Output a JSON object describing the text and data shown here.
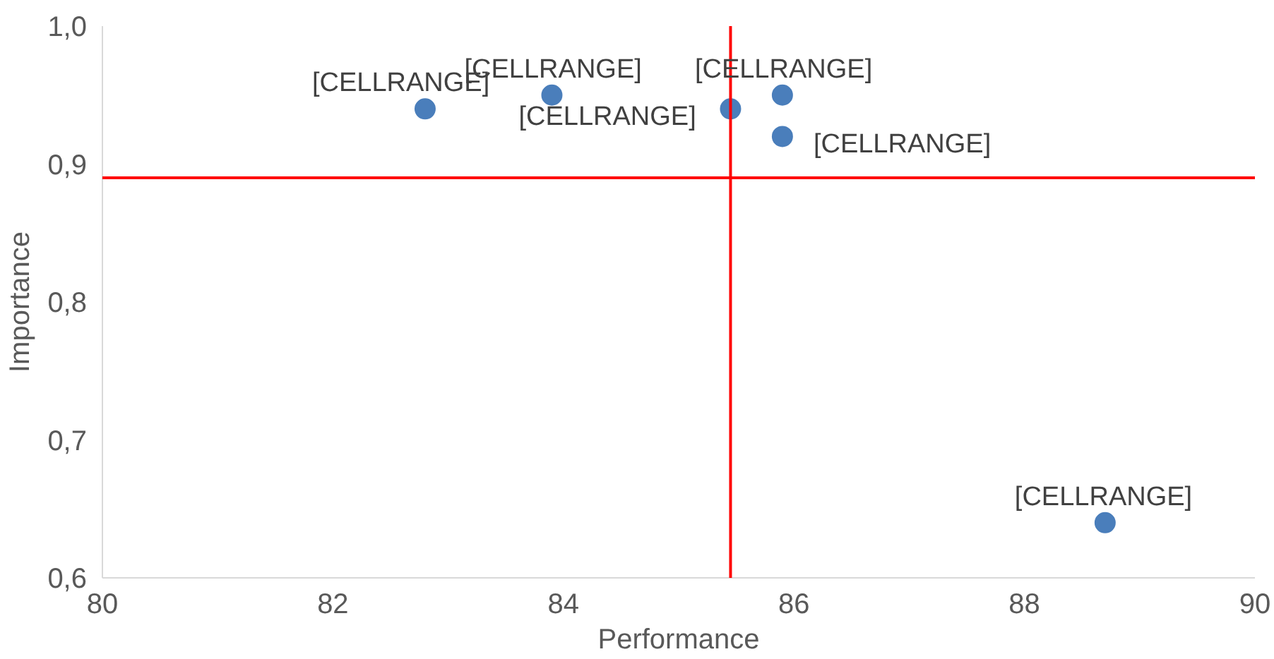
{
  "chart_data": {
    "type": "scatter",
    "xlabel": "Performance",
    "ylabel": "Importance",
    "xlim": [
      80,
      90
    ],
    "ylim": [
      0.6,
      1.0
    ],
    "xticks": [
      80,
      82,
      84,
      86,
      88,
      90
    ],
    "yticks": [
      {
        "value": 0.6,
        "label": "0,6"
      },
      {
        "value": 0.7,
        "label": "0,7"
      },
      {
        "value": 0.8,
        "label": "0,8"
      },
      {
        "value": 0.9,
        "label": "0,9"
      },
      {
        "value": 1.0,
        "label": "1,0"
      }
    ],
    "grid": false,
    "marker": "circle",
    "series": [
      {
        "color": "#4a7ebb",
        "x": [
          82.8,
          83.9,
          85.45,
          85.9,
          85.9,
          88.7
        ],
        "values": [
          0.94,
          0.95,
          0.94,
          0.95,
          0.92,
          0.64
        ]
      }
    ],
    "ref_lines": [
      {
        "axis": "x",
        "value": 85.45,
        "color": "#ff0000"
      },
      {
        "axis": "y",
        "value": 0.89,
        "color": "#ff0000"
      }
    ],
    "annotations": [
      {
        "text": "[CELLRANGE]",
        "x": 82.8,
        "y": 0.94
      },
      {
        "text": "[CELLRANGE]",
        "x": 83.9,
        "y": 0.95
      },
      {
        "text": "[CELLRANGE]",
        "x": 85.45,
        "y": 0.94
      },
      {
        "text": "[CELLRANGE]",
        "x": 85.9,
        "y": 0.95
      },
      {
        "text": "[CELLRANGE]",
        "x": 85.9,
        "y": 0.92
      },
      {
        "text": "[CELLRANGE]",
        "x": 88.7,
        "y": 0.64
      }
    ]
  }
}
